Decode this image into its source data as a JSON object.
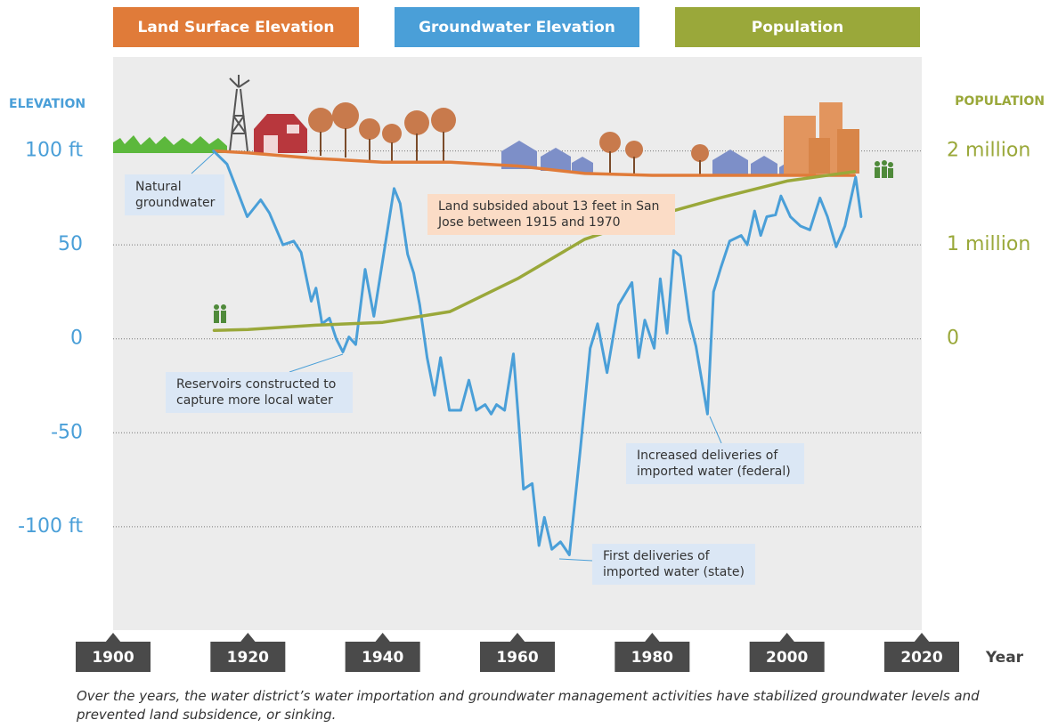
{
  "chart_data": {
    "type": "line",
    "xlabel": "Year",
    "ylabel": "ELEVATION",
    "y2label": "POPULATION",
    "xlim": [
      1900,
      2020
    ],
    "xticks": [
      1900,
      1920,
      1940,
      1960,
      1980,
      2000,
      2020
    ],
    "ylim": [
      -155,
      150
    ],
    "yticks": [
      {
        "value": -100,
        "label": "-100 ft"
      },
      -50,
      0,
      50,
      {
        "value": 100,
        "label": "100 ft"
      }
    ],
    "y2lim": [
      -3100000,
      3000000
    ],
    "y2ticks": [
      0,
      {
        "value": 1000000,
        "label": "1 million"
      },
      {
        "value": 2000000,
        "label": "2 million"
      }
    ],
    "grid": true,
    "legend": "top",
    "series": [
      {
        "name": "Land Surface Elevation",
        "color": "#e07b39",
        "x": [
          1915,
          1920,
          1930,
          1940,
          1950,
          1960,
          1970,
          1980,
          1990,
          2000,
          2010
        ],
        "values": [
          100,
          99,
          96,
          94,
          94,
          92,
          88,
          87,
          87,
          87,
          87
        ]
      },
      {
        "name": "Groundwater Elevation",
        "color": "#4a9fd8",
        "x": [
          1914.9,
          1916.9,
          1918.2,
          1919.9,
          1921.9,
          1923.2,
          1925.2,
          1926.8,
          1927.9,
          1929.4,
          1930.1,
          1931.0,
          1932.1,
          1933.1,
          1934.1,
          1935.0,
          1936.0,
          1937.4,
          1938.7,
          1941.7,
          1942.6,
          1943.7,
          1944.6,
          1945.5,
          1946.6,
          1947.7,
          1948.6,
          1949.9,
          1951.6,
          1952.8,
          1953.9,
          1955.2,
          1956.1,
          1956.9,
          1958.1,
          1959.4,
          1960.2,
          1960.9,
          1962.2,
          1963.2,
          1964.0,
          1965.1,
          1966.4,
          1967.7,
          1969.3,
          1970.8,
          1971.9,
          1973.3,
          1975.0,
          1977.0,
          1978.0,
          1978.9,
          1980.3,
          1981.2,
          1982.2,
          1983.2,
          1984.2,
          1985.5,
          1986.5,
          1988.2,
          1989.1,
          1990.2,
          1991.5,
          1993.2,
          1994.1,
          1995.2,
          1996.1,
          1997.0,
          1998.3,
          1999.1,
          2000.5,
          2002.0,
          2003.4,
          2004.9,
          2006.0,
          2007.3,
          2008.6,
          2010.2,
          2011.0
        ],
        "values": [
          100,
          93,
          81,
          65,
          74,
          67,
          50,
          52,
          46,
          20,
          27,
          8,
          11,
          0,
          -7,
          1,
          -3,
          37,
          12,
          80,
          72,
          45,
          35,
          18,
          -10,
          -30,
          -10,
          -38,
          -38,
          -22,
          -38,
          -35,
          -40,
          -35,
          -38,
          -8,
          -45,
          -80,
          -77,
          -110,
          -95,
          -112,
          -108,
          -115,
          -60,
          -5,
          8,
          -18,
          18,
          30,
          -10,
          10,
          -5,
          32,
          3,
          47,
          44,
          10,
          -4,
          -40,
          25,
          38,
          52,
          55,
          50,
          68,
          55,
          65,
          66,
          76,
          65,
          60,
          58,
          75,
          65,
          49,
          60,
          86,
          65
        ]
      },
      {
        "name": "Population",
        "color": "#9aa83a",
        "axis": "y2",
        "x": [
          1915,
          1920,
          1930,
          1940,
          1950,
          1960,
          1970,
          1980,
          1990,
          2000,
          2010
        ],
        "values": [
          90000,
          100000,
          145000,
          175000,
          290000,
          640000,
          1060000,
          1300000,
          1500000,
          1680000,
          1780000
        ]
      }
    ],
    "annotations": [
      "Natural groundwater",
      "Land subsided about 13 feet in San Jose between 1915 and 1970",
      "Reservoirs constructed to capture more local water",
      "Increased deliveries of imported water (federal)",
      "First deliveries of imported water (state)"
    ],
    "caption": "Over the years, the water district’s water importation and groundwater management activities have stabilized groundwater levels and prevented land subsidence, or sinking."
  }
}
